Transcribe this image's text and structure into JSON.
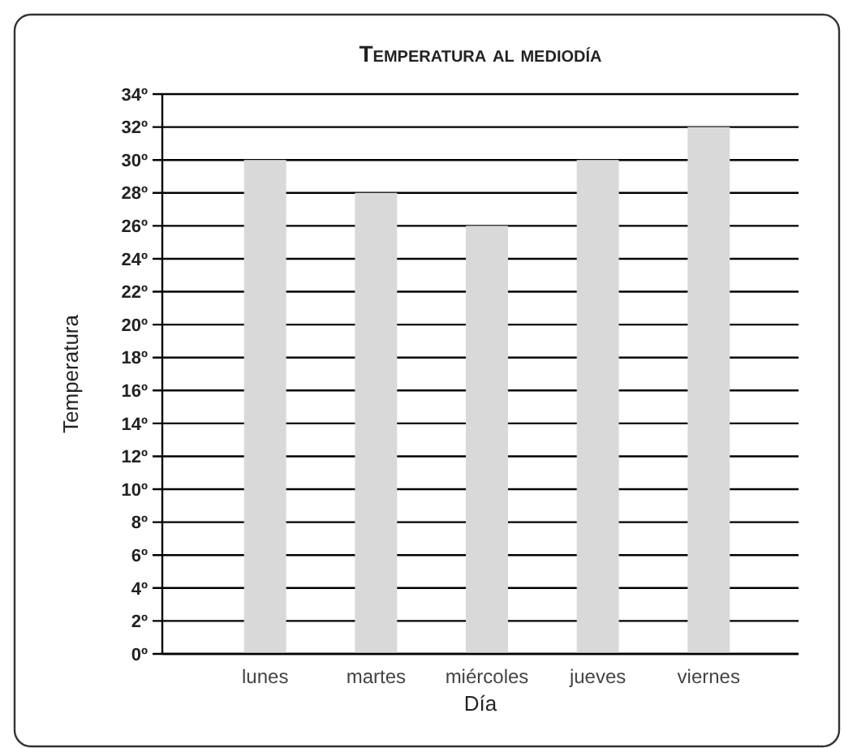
{
  "chart_data": {
    "type": "bar",
    "title": "Temperatura al mediodía",
    "xlabel": "Día",
    "ylabel": "Temperatura",
    "categories": [
      "lunes",
      "martes",
      "miércoles",
      "jueves",
      "viernes"
    ],
    "values": [
      30,
      28,
      26,
      30,
      32
    ],
    "color": "#d9d9d9",
    "ylim": [
      0,
      34
    ],
    "yticks": [
      {
        "value": 0,
        "label": "0º"
      },
      {
        "value": 2,
        "label": "2º"
      },
      {
        "value": 4,
        "label": "4º"
      },
      {
        "value": 6,
        "label": "6º"
      },
      {
        "value": 8,
        "label": "8º"
      },
      {
        "value": 10,
        "label": "10º"
      },
      {
        "value": 12,
        "label": "12º"
      },
      {
        "value": 14,
        "label": "14º"
      },
      {
        "value": 16,
        "label": "16º"
      },
      {
        "value": 18,
        "label": "18º"
      },
      {
        "value": 20,
        "label": "20º"
      },
      {
        "value": 22,
        "label": "22º"
      },
      {
        "value": 24,
        "label": "24º"
      },
      {
        "value": 26,
        "label": "26º"
      },
      {
        "value": 28,
        "label": "28º"
      },
      {
        "value": 30,
        "label": "30º"
      },
      {
        "value": 32,
        "label": "32º"
      },
      {
        "value": 34,
        "label": "34º"
      }
    ],
    "grid": "y"
  }
}
